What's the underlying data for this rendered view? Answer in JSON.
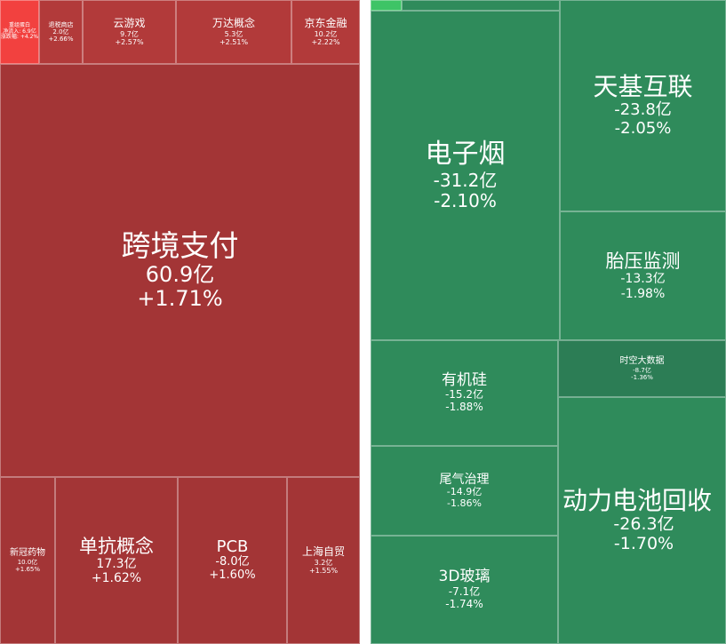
{
  "left_panel": {
    "tiles": [
      {
        "name": "重组蛋白",
        "amount": "净流入: 6.9亿",
        "change": "涨跌幅: +4.2%"
      },
      {
        "name": "退税商店",
        "amount": "2.0亿",
        "change": "+2.66%"
      },
      {
        "name": "云游戏",
        "amount": "9.7亿",
        "change": "+2.57%"
      },
      {
        "name": "万达概念",
        "amount": "5.3亿",
        "change": "+2.51%"
      },
      {
        "name": "京东金融",
        "amount": "10.2亿",
        "change": "+2.22%"
      },
      {
        "name": "跨境支付",
        "amount": "60.9亿",
        "change": "+1.71%"
      },
      {
        "name": "新冠药物",
        "amount": "10.0亿",
        "change": "+1.65%"
      },
      {
        "name": "单抗概念",
        "amount": "17.3亿",
        "change": "+1.62%"
      },
      {
        "name": "PCB",
        "amount": "-8.0亿",
        "change": "+1.60%"
      },
      {
        "name": "上海自贸",
        "amount": "3.2亿",
        "change": "+1.55%"
      }
    ]
  },
  "right_panel": {
    "tiles": [
      {
        "name": "电子烟",
        "amount": "-31.2亿",
        "change": "-2.10%"
      },
      {
        "name": "天基互联",
        "amount": "-23.8亿",
        "change": "-2.05%"
      },
      {
        "name": "胎压监测",
        "amount": "-13.3亿",
        "change": "-1.98%"
      },
      {
        "name": "有机硅",
        "amount": "-15.2亿",
        "change": "-1.88%"
      },
      {
        "name": "时空大数据",
        "amount": "-8.7亿",
        "change": "-1.36%"
      },
      {
        "name": "尾气治理",
        "amount": "-14.9亿",
        "change": "-1.86%"
      },
      {
        "name": "3D玻璃",
        "amount": "-7.1亿",
        "change": "-1.74%"
      },
      {
        "name": "动力电池回收",
        "amount": "-26.3亿",
        "change": "-1.70%"
      }
    ]
  }
}
